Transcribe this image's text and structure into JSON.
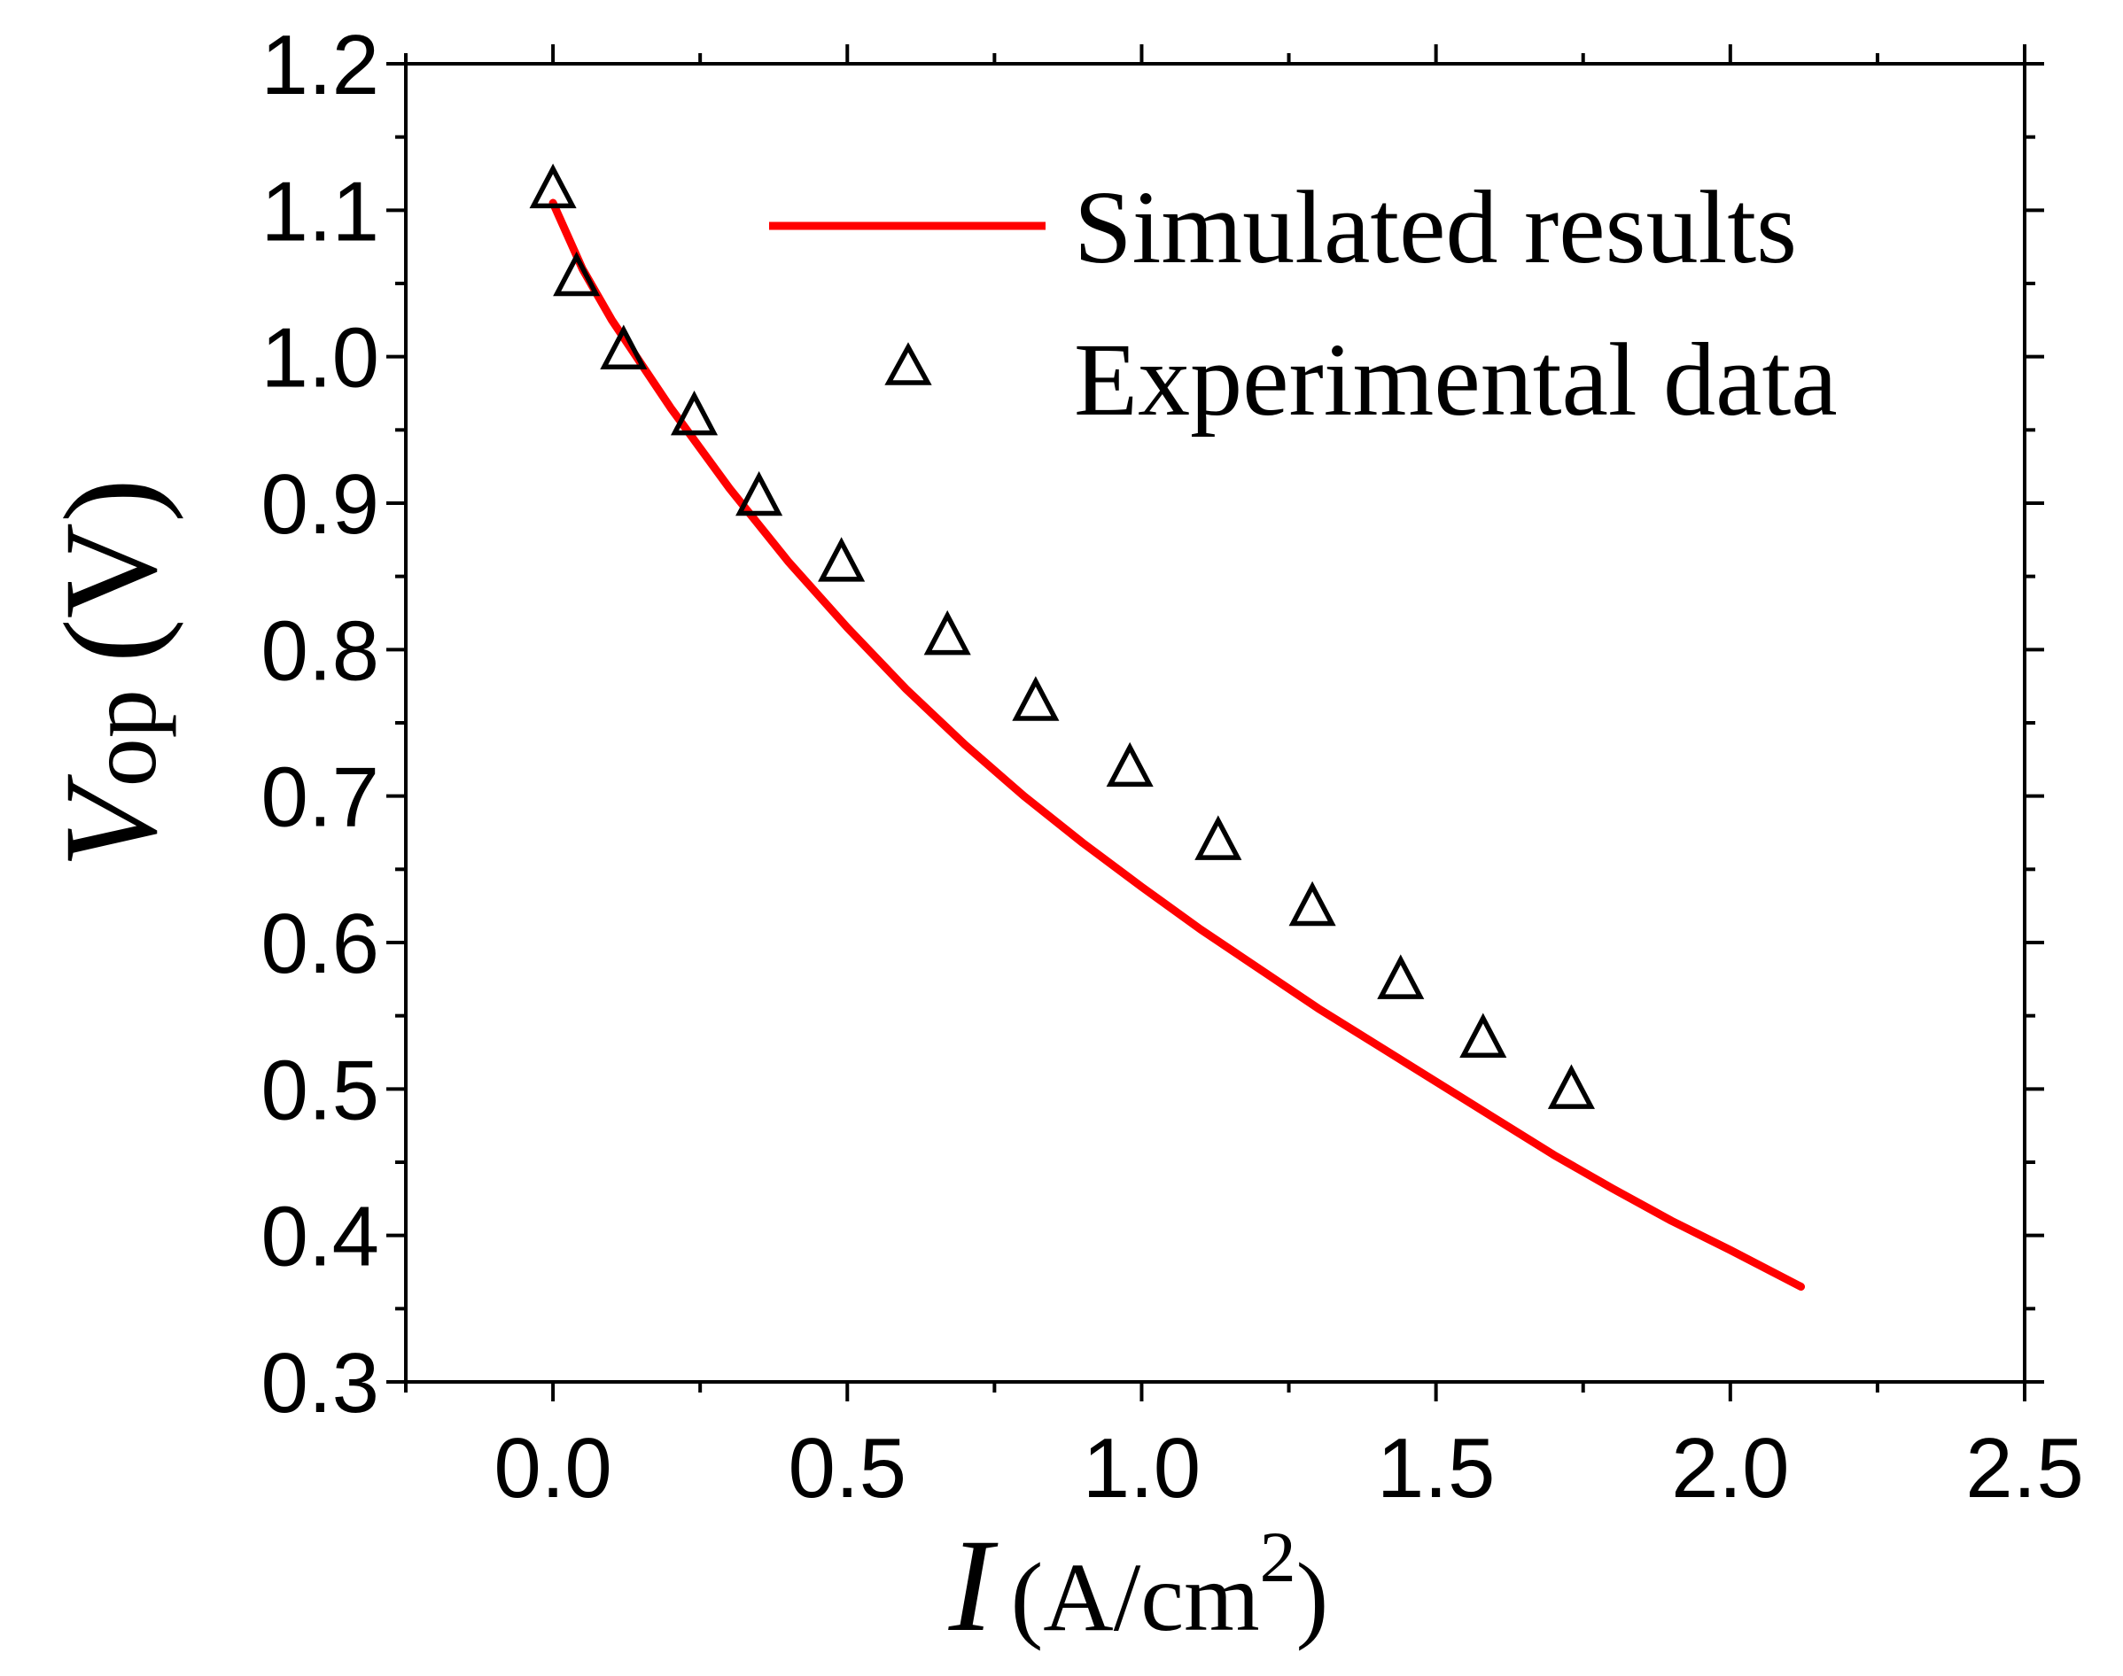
{
  "chart_data": {
    "type": "line",
    "title": "",
    "xlabel": {
      "symbol": "I",
      "unit": "(A/cm",
      "superscript": "2",
      "close": ")"
    },
    "ylabel": {
      "symbol": "V",
      "subscript": "op",
      "unit": "(V)"
    },
    "xlim": [
      -0.25,
      2.5
    ],
    "ylim": [
      0.3,
      1.2
    ],
    "x_ticks": [
      0.0,
      0.5,
      1.0,
      1.5,
      2.0,
      2.5
    ],
    "x_tick_labels": [
      "0.0",
      "0.5",
      "1.0",
      "1.5",
      "2.0",
      "2.5"
    ],
    "y_ticks": [
      0.3,
      0.4,
      0.5,
      0.6,
      0.7,
      0.8,
      0.9,
      1.0,
      1.1,
      1.2
    ],
    "y_tick_labels": [
      "0.3",
      "0.4",
      "0.5",
      "0.6",
      "0.7",
      "0.8",
      "0.9",
      "1.0",
      "1.1",
      "1.2"
    ],
    "grid": false,
    "legend_position": "top-right",
    "series": [
      {
        "name": "Simulated results",
        "kind": "line",
        "color": "#ff0000",
        "x": [
          0.0,
          0.05,
          0.1,
          0.2,
          0.3,
          0.4,
          0.5,
          0.6,
          0.7,
          0.8,
          0.9,
          1.0,
          1.1,
          1.2,
          1.3,
          1.4,
          1.5,
          1.6,
          1.7,
          1.8,
          1.9,
          2.0,
          2.12
        ],
        "y": [
          1.105,
          1.06,
          1.025,
          0.965,
          0.91,
          0.86,
          0.815,
          0.773,
          0.735,
          0.7,
          0.668,
          0.638,
          0.609,
          0.582,
          0.555,
          0.53,
          0.505,
          0.48,
          0.455,
          0.432,
          0.41,
          0.39,
          0.365
        ]
      },
      {
        "name": "Experimental data",
        "kind": "scatter",
        "marker": "open-triangle",
        "color": "#000000",
        "x": [
          0.0,
          0.04,
          0.12,
          0.24,
          0.35,
          0.49,
          0.67,
          0.82,
          0.98,
          1.13,
          1.29,
          1.44,
          1.58,
          1.73
        ],
        "y": [
          1.115,
          1.055,
          1.005,
          0.96,
          0.905,
          0.86,
          0.81,
          0.765,
          0.72,
          0.67,
          0.625,
          0.575,
          0.535,
          0.5
        ]
      }
    ]
  }
}
